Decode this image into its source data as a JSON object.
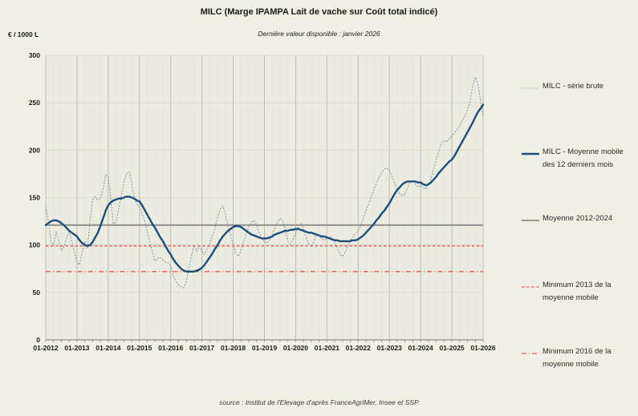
{
  "chart_data": {
    "type": "line",
    "title": "MILC (Marge IPAMPA Lait de vache sur Coût total indicé)",
    "subtitle": "Dernière valeur disponible : janvier 2026",
    "y_unit": "€ / 1000 L",
    "source": "source : Institut de l'Elevage d'après FranceAgriMer, Insee et SSP",
    "ylim": [
      0,
      300
    ],
    "y_ticks": [
      0,
      50,
      100,
      150,
      200,
      250,
      300
    ],
    "x_tick_labels": [
      "01-2012",
      "01-2013",
      "01-2014",
      "01-2015",
      "01-2016",
      "01-2017",
      "01-2018",
      "01-2019",
      "01-2020",
      "01-2021",
      "01-2022",
      "01-2023",
      "01-2024",
      "01-2025",
      "01-2026"
    ],
    "x_frequency": "monthly",
    "x_range": [
      "01-2012",
      "01-2026"
    ],
    "grid": true,
    "legend_position": "right",
    "series": [
      {
        "name": "MILC - série brute",
        "style": "dotted",
        "color": "#7b90aa",
        "stroke_width": 1,
        "values": [
          140,
          126,
          104,
          100,
          114,
          104,
          94,
          98,
          108,
          115,
          104,
          93,
          82,
          79,
          93,
          104,
          97,
          125,
          148,
          151,
          147,
          149,
          158,
          174,
          172,
          148,
          122,
          124,
          138,
          152,
          166,
          175,
          177,
          166,
          149,
          143,
          141,
          133,
          126,
          114,
          103,
          92,
          83,
          86,
          87,
          84,
          82,
          81,
          78,
          67,
          62,
          58,
          56,
          55,
          62,
          75,
          89,
          100,
          93,
          99,
          94,
          90,
          96,
          102,
          109,
          118,
          129,
          138,
          141,
          133,
          121,
          110,
          100,
          92,
          88,
          94,
          103,
          112,
          119,
          124,
          126,
          121,
          113,
          107,
          104,
          102,
          105,
          111,
          118,
          124,
          128,
          126,
          115,
          104,
          101,
          106,
          112,
          119,
          123,
          117,
          108,
          101,
          98,
          104,
          112,
          110,
          107,
          105,
          107,
          109,
          108,
          103,
          97,
          90,
          88,
          92,
          99,
          105,
          109,
          112,
          115,
          121,
          128,
          136,
          143,
          151,
          158,
          165,
          171,
          176,
          180,
          181,
          179,
          172,
          165,
          158,
          154,
          152,
          154,
          160,
          167,
          168,
          164,
          161,
          163,
          160,
          159,
          163,
          170,
          180,
          190,
          200,
          208,
          210,
          209,
          212,
          215,
          218,
          222,
          226,
          231,
          236,
          242,
          252,
          268,
          277,
          270,
          252,
          236
        ]
      },
      {
        "name": "MILC - Moyenne mobile des 12 derniers mois",
        "style": "solid",
        "color": "#1d4e78",
        "stroke_width": 2.4,
        "values": [
          121,
          123,
          125,
          126,
          126,
          125,
          123,
          121,
          118,
          115,
          113,
          111,
          109,
          105,
          102,
          100,
          99,
          100,
          103,
          108,
          113,
          120,
          128,
          136,
          142,
          145,
          147,
          148,
          149,
          149,
          150,
          151,
          151,
          150,
          149,
          147,
          146,
          142,
          137,
          132,
          127,
          122,
          118,
          113,
          108,
          104,
          99,
          94,
          90,
          85,
          81,
          78,
          75,
          73,
          72,
          72,
          72,
          72,
          73,
          74,
          76,
          79,
          83,
          87,
          91,
          96,
          100,
          105,
          109,
          112,
          115,
          117,
          119,
          120,
          120,
          119,
          117,
          115,
          113,
          111,
          110,
          109,
          108,
          107,
          107,
          107,
          108,
          109,
          111,
          112,
          113,
          114,
          115,
          115,
          116,
          116,
          117,
          117,
          116,
          115,
          114,
          113,
          113,
          112,
          111,
          110,
          109,
          109,
          108,
          107,
          106,
          105,
          105,
          104,
          104,
          104,
          104,
          104,
          105,
          105,
          106,
          108,
          110,
          113,
          116,
          119,
          122,
          126,
          129,
          133,
          136,
          140,
          144,
          149,
          154,
          158,
          161,
          164,
          166,
          167,
          167,
          167,
          167,
          166,
          166,
          164,
          163,
          164,
          166,
          169,
          172,
          176,
          179,
          182,
          185,
          188,
          190,
          194,
          199,
          204,
          209,
          214,
          219,
          224,
          229,
          235,
          240,
          244,
          248
        ]
      }
    ],
    "reference_lines": [
      {
        "name": "Moyenne 2012-2024",
        "value": 121,
        "style": "solid",
        "color": "#8c8c8c",
        "stroke_width": 1.8
      },
      {
        "name": "Minimum 2013  de la moyenne mobile",
        "value": 99,
        "style": "dashed",
        "color": "#e63c2f",
        "stroke_width": 1.1
      },
      {
        "name": "Minimum 2016 de la moyenne mobile",
        "value": 72,
        "style": "dashdot",
        "color": "#e63c2f",
        "stroke_width": 1.1
      }
    ],
    "colors": {
      "background": "#f0efe4",
      "plot_background": "#ecebdf",
      "grid_year": "#bcbbb0",
      "grid_quarter": "#e3e2d6",
      "grid_horizontal": "#d7d6c9",
      "axis": "#8f8e84"
    }
  }
}
